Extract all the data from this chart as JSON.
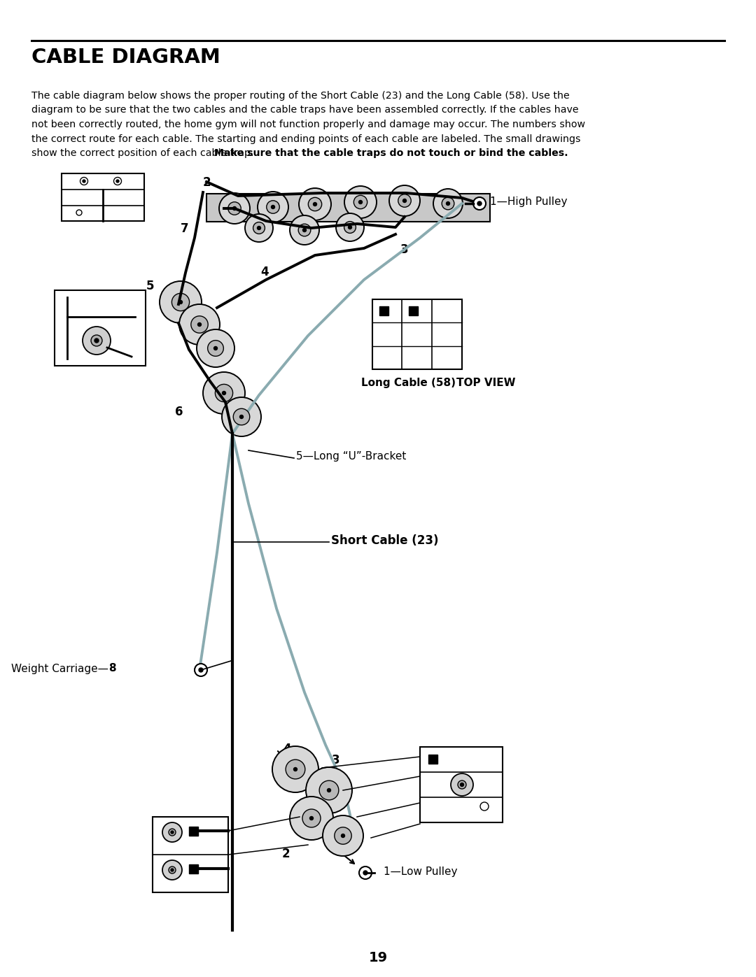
{
  "title": "CABLE DIAGRAM",
  "page_number": "19",
  "text_line1": "The cable diagram below shows the proper routing of the Short Cable (23) and the Long Cable (58). Use the",
  "text_line2": "diagram to be sure that the two cables and the cable traps have been assembled correctly. If the cables have",
  "text_line3": "not been correctly routed, the home gym will not function properly and damage may occur. The numbers show",
  "text_line4": "the correct route for each cable. The starting and ending points of each cable are labeled. The small drawings",
  "text_line5": "show the correct position of each cable trap. ",
  "text_bold": "Make sure that the cable traps do not touch or bind the cables.",
  "bg_color": "#ffffff",
  "short_cable_color": "#8aabb0",
  "label_1_high": "1—High Pulley",
  "label_1_low": "1—Low Pulley",
  "label_long_cable": "Long Cable (58)",
  "label_top_view": "TOP VIEW",
  "label_short_cable": "Short Cable (23)",
  "label_long_ubracket": "5—Long “U”-Bracket",
  "label_weight_carriage": "Weight Carriage—",
  "label_weight_num": "8"
}
